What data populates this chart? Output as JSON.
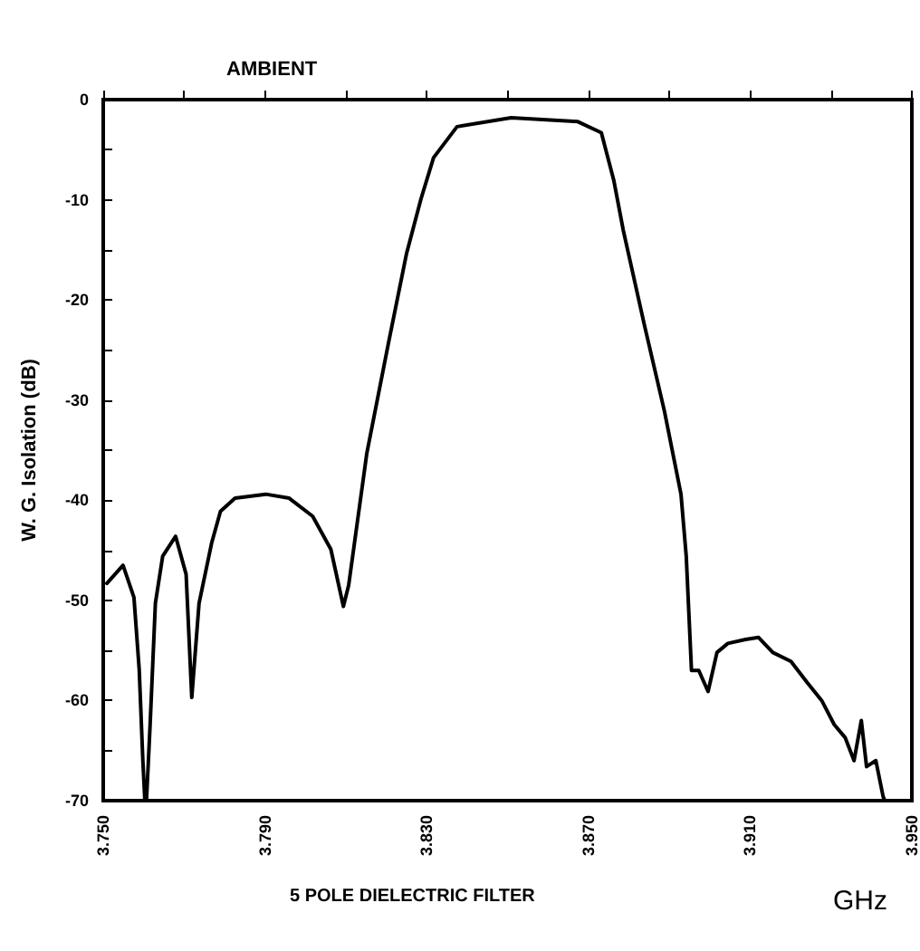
{
  "chart_data": {
    "type": "line",
    "title": "AMBIENT",
    "xlabel": "GHz",
    "ylabel": "W. G. Isolation (dB)",
    "annotations": [
      "5 POLE DIELECTRIC FILTER"
    ],
    "x": [
      3.7509,
      3.7549,
      3.7576,
      3.7589,
      3.7598,
      3.7603,
      3.7607,
      3.7616,
      3.7629,
      3.7647,
      3.7679,
      3.7705,
      3.7719,
      3.7737,
      3.7768,
      3.779,
      3.7826,
      3.7902,
      3.796,
      3.8018,
      3.8063,
      3.8094,
      3.8107,
      3.8152,
      3.8205,
      3.825,
      3.8286,
      3.8317,
      3.8375,
      3.8509,
      3.8674,
      3.8732,
      3.8763,
      3.8786,
      3.8839,
      3.8888,
      3.8929,
      3.8942,
      3.8955,
      3.8973,
      3.8996,
      3.9018,
      3.9045,
      3.9089,
      3.9121,
      3.9156,
      3.9201,
      3.9241,
      3.9277,
      3.9308,
      3.9335,
      3.9357,
      3.9375,
      3.9388,
      3.9411,
      3.9429,
      3.9433
    ],
    "series": [
      {
        "color": "#000000",
        "values": [
          -48.3,
          -46.5,
          -49.7,
          -56.9,
          -66.0,
          -70,
          -70,
          -62.4,
          -50.3,
          -45.6,
          -43.6,
          -47.4,
          -59.7,
          -50.3,
          -44.3,
          -41.1,
          -39.8,
          -39.4,
          -39.8,
          -41.6,
          -44.9,
          -50.6,
          -48.5,
          -35.3,
          -24.4,
          -15.4,
          -9.9,
          -5.8,
          -2.7,
          -1.8,
          -2.2,
          -3.3,
          -8.1,
          -13.0,
          -22.6,
          -31.1,
          -39.4,
          -45.6,
          -57.0,
          -57.0,
          -59.1,
          -55.2,
          -54.3,
          -53.9,
          -53.7,
          -55.2,
          -56.1,
          -58.2,
          -60.0,
          -62.4,
          -63.7,
          -66.0,
          -62.0,
          -66.6,
          -66.0,
          -69.6,
          -70
        ]
      }
    ],
    "xlim": [
      3.75,
      3.95
    ],
    "xticks": [
      {
        "value": 3.75,
        "label": "3.750"
      },
      {
        "value": 3.77,
        "label": null
      },
      {
        "value": 3.79,
        "label": "3.790"
      },
      {
        "value": 3.81,
        "label": null
      },
      {
        "value": 3.83,
        "label": "3.830"
      },
      {
        "value": 3.85,
        "label": null
      },
      {
        "value": 3.87,
        "label": "3.870"
      },
      {
        "value": 3.89,
        "label": null
      },
      {
        "value": 3.91,
        "label": "3.910"
      },
      {
        "value": 3.93,
        "label": null
      },
      {
        "value": 3.95,
        "label": "3.950"
      }
    ],
    "ylim": [
      -70,
      0
    ],
    "yticks": [
      -70,
      {
        "value": -65,
        "label": null
      },
      -60,
      {
        "value": -55,
        "label": null
      },
      -50,
      {
        "value": -45,
        "label": null
      },
      -40,
      {
        "value": -35,
        "label": null
      },
      -30,
      {
        "value": -25,
        "label": null
      },
      -20,
      {
        "value": -15,
        "label": null
      },
      -10,
      {
        "value": -5,
        "label": null
      },
      0
    ],
    "grid": false,
    "marker": "none",
    "line_style": "solid"
  }
}
